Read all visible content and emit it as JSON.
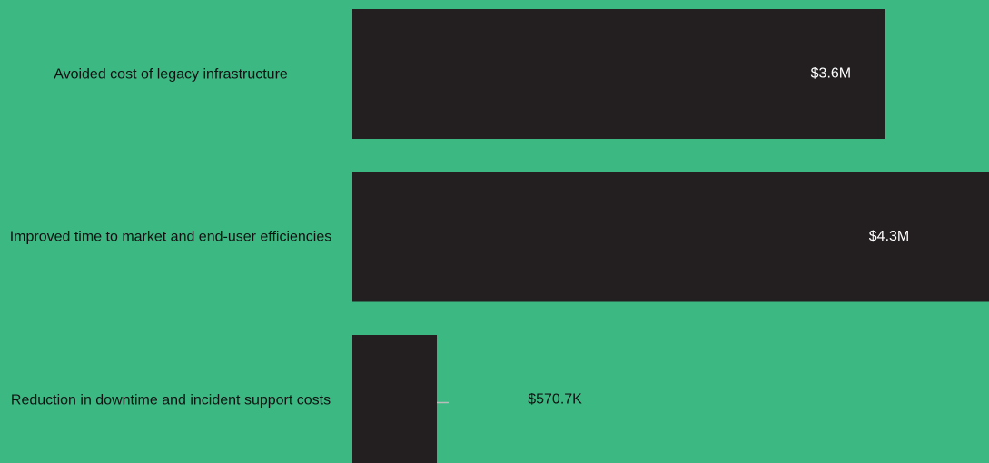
{
  "chart_data": {
    "type": "hbar",
    "categories": [
      "Avoided cost of legacy infrastructure",
      "Improved time to market and end-user efficiencies",
      "Reduction in downtime and incident support costs"
    ],
    "values": [
      3600000,
      4300000,
      570700
    ],
    "value_labels": [
      "$3.6M",
      "$4.3M",
      "$570.7K"
    ],
    "color": "#231f20",
    "xlim": [
      0,
      4300000
    ]
  }
}
